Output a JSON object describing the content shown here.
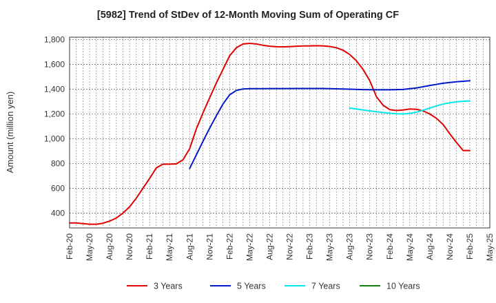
{
  "chart_data": {
    "type": "line",
    "title": "[5982]  Trend of StDev of 12-Month Moving Sum of Operating CF",
    "xlabel": "",
    "ylabel": "Amount (million yen)",
    "ylim": [
      280,
      1820
    ],
    "yticks": [
      400,
      600,
      800,
      1000,
      1200,
      1400,
      1600,
      1800
    ],
    "ytick_labels": [
      "400",
      "600",
      "800",
      "1,000",
      "1,200",
      "1,400",
      "1,600",
      "1,800"
    ],
    "xtick_labels": [
      "Feb-20",
      "May-20",
      "Aug-20",
      "Nov-20",
      "Feb-21",
      "May-21",
      "Aug-21",
      "Nov-21",
      "Feb-22",
      "May-22",
      "Aug-22",
      "Nov-22",
      "Feb-23",
      "May-23",
      "Aug-23",
      "Nov-23",
      "Feb-24",
      "May-24",
      "Aug-24",
      "Nov-24",
      "Feb-25",
      "May-25"
    ],
    "grid": true,
    "legend_placement": "bottom",
    "series": [
      {
        "name": "3 Years",
        "color": "#e00000",
        "x": [
          "2020-02",
          "2020-03",
          "2020-04",
          "2020-05",
          "2020-06",
          "2020-07",
          "2020-08",
          "2020-09",
          "2020-10",
          "2020-11",
          "2020-12",
          "2021-01",
          "2021-02",
          "2021-03",
          "2021-04",
          "2021-05",
          "2021-06",
          "2021-07",
          "2021-08",
          "2021-09",
          "2021-10",
          "2021-11",
          "2021-12",
          "2022-01",
          "2022-02",
          "2022-03",
          "2022-04",
          "2022-05",
          "2022-06",
          "2022-07",
          "2022-08",
          "2022-09",
          "2022-10",
          "2022-11",
          "2022-12",
          "2023-01",
          "2023-02",
          "2023-03",
          "2023-04",
          "2023-05",
          "2023-06",
          "2023-07",
          "2023-08",
          "2023-09",
          "2023-10",
          "2023-11",
          "2023-12",
          "2024-01",
          "2024-02",
          "2024-03",
          "2024-04",
          "2024-05",
          "2024-06",
          "2024-07",
          "2024-08",
          "2024-09",
          "2024-10",
          "2024-11",
          "2024-12",
          "2025-01",
          "2025-02"
        ],
        "values": [
          320,
          320,
          315,
          310,
          310,
          318,
          335,
          360,
          400,
          450,
          520,
          600,
          680,
          765,
          795,
          795,
          797,
          830,
          920,
          1080,
          1210,
          1330,
          1450,
          1560,
          1670,
          1735,
          1765,
          1770,
          1765,
          1755,
          1747,
          1743,
          1742,
          1744,
          1747,
          1749,
          1750,
          1751,
          1750,
          1745,
          1735,
          1715,
          1680,
          1630,
          1560,
          1470,
          1340,
          1270,
          1235,
          1228,
          1232,
          1240,
          1238,
          1225,
          1200,
          1165,
          1115,
          1040,
          970,
          905,
          905
        ],
        "display_until": "2025-02"
      },
      {
        "name": "5 Years",
        "color": "#0018c8",
        "x": [
          "2021-08",
          "2021-09",
          "2021-10",
          "2021-11",
          "2021-12",
          "2022-01",
          "2022-02",
          "2022-03",
          "2022-04",
          "2022-05",
          "2022-06",
          "2022-08",
          "2022-10",
          "2022-12",
          "2023-02",
          "2023-04",
          "2023-06",
          "2023-08",
          "2023-10",
          "2023-12",
          "2024-02",
          "2024-04",
          "2024-06",
          "2024-08",
          "2024-10",
          "2024-12",
          "2025-02"
        ],
        "values": [
          760,
          870,
          980,
          1085,
          1185,
          1280,
          1355,
          1390,
          1402,
          1404,
          1404,
          1405,
          1405,
          1406,
          1406,
          1406,
          1403,
          1400,
          1397,
          1395,
          1395,
          1398,
          1410,
          1430,
          1448,
          1460,
          1468
        ]
      },
      {
        "name": "7 Years",
        "color": "#00e8e8",
        "x": [
          "2023-08",
          "2023-09",
          "2023-10",
          "2023-11",
          "2023-12",
          "2024-01",
          "2024-02",
          "2024-03",
          "2024-04",
          "2024-05",
          "2024-06",
          "2024-07",
          "2024-08",
          "2024-09",
          "2024-10",
          "2024-11",
          "2024-12",
          "2025-01",
          "2025-02"
        ],
        "values": [
          1248,
          1240,
          1232,
          1225,
          1218,
          1212,
          1206,
          1202,
          1200,
          1205,
          1215,
          1230,
          1248,
          1265,
          1280,
          1290,
          1298,
          1303,
          1305
        ]
      },
      {
        "name": "10 Years",
        "color": "#108010",
        "x": [],
        "values": []
      }
    ]
  }
}
